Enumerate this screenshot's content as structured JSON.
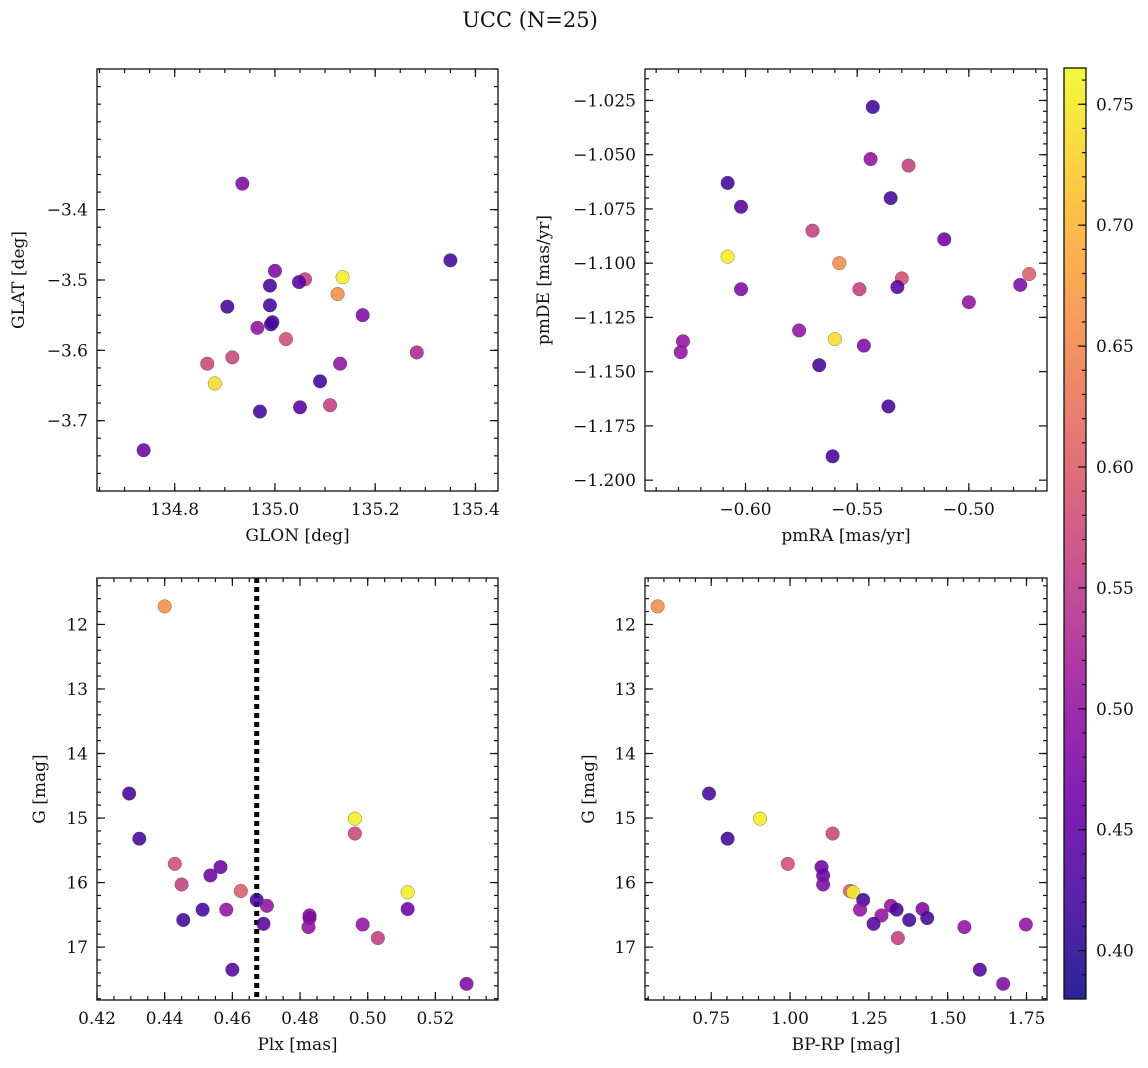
{
  "figure": {
    "title": "UCC (N=25)",
    "colorbar": {
      "vmin": 0.38,
      "vmax": 0.765,
      "ticks": [
        0.4,
        0.45,
        0.5,
        0.55,
        0.6,
        0.65,
        0.7,
        0.75
      ],
      "colormap": "plasma"
    }
  },
  "chart_data": [
    {
      "type": "scatter",
      "xlabel": "GLON [deg]",
      "ylabel": "GLAT [deg]",
      "xlim": [
        134.645,
        135.445
      ],
      "ylim": [
        -3.8,
        -3.2
      ],
      "y_inverted": false,
      "xticks": [
        134.8,
        135.0,
        135.2,
        135.4
      ],
      "yticks": [
        -3.4,
        -3.5,
        -3.6,
        -3.7
      ],
      "points": [
        {
          "x": 134.935,
          "y": -3.363,
          "c": 0.48
        },
        {
          "x": 135.35,
          "y": -3.472,
          "c": 0.42
        },
        {
          "x": 135.0,
          "y": -3.487,
          "c": 0.48
        },
        {
          "x": 135.135,
          "y": -3.496,
          "c": 0.755
        },
        {
          "x": 135.06,
          "y": -3.499,
          "c": 0.56
        },
        {
          "x": 135.048,
          "y": -3.503,
          "c": 0.44
        },
        {
          "x": 134.99,
          "y": -3.508,
          "c": 0.42
        },
        {
          "x": 135.125,
          "y": -3.52,
          "c": 0.66
        },
        {
          "x": 134.905,
          "y": -3.538,
          "c": 0.42
        },
        {
          "x": 134.99,
          "y": -3.536,
          "c": 0.42
        },
        {
          "x": 135.175,
          "y": -3.55,
          "c": 0.48
        },
        {
          "x": 134.995,
          "y": -3.56,
          "c": 0.44
        },
        {
          "x": 134.992,
          "y": -3.563,
          "c": 0.42
        },
        {
          "x": 134.965,
          "y": -3.568,
          "c": 0.5
        },
        {
          "x": 135.022,
          "y": -3.584,
          "c": 0.58
        },
        {
          "x": 135.283,
          "y": -3.603,
          "c": 0.53
        },
        {
          "x": 134.915,
          "y": -3.61,
          "c": 0.57
        },
        {
          "x": 134.865,
          "y": -3.619,
          "c": 0.57
        },
        {
          "x": 135.13,
          "y": -3.619,
          "c": 0.5
        },
        {
          "x": 135.09,
          "y": -3.644,
          "c": 0.42
        },
        {
          "x": 134.88,
          "y": -3.647,
          "c": 0.74
        },
        {
          "x": 135.11,
          "y": -3.678,
          "c": 0.56
        },
        {
          "x": 135.05,
          "y": -3.681,
          "c": 0.44
        },
        {
          "x": 134.97,
          "y": -3.687,
          "c": 0.42
        },
        {
          "x": 134.738,
          "y": -3.742,
          "c": 0.46
        }
      ]
    },
    {
      "type": "scatter",
      "xlabel": "pmRA [mas/yr]",
      "ylabel": "pmDE [mas/yr]",
      "xlim": [
        -0.645,
        -0.465
      ],
      "ylim": [
        -1.205,
        -1.0105
      ],
      "y_inverted": false,
      "xticks": [
        -0.6,
        -0.55,
        -0.5
      ],
      "yticks": [
        -1.025,
        -1.05,
        -1.075,
        -1.1,
        -1.125,
        -1.15,
        -1.175,
        -1.2
      ],
      "points": [
        {
          "x": -0.543,
          "y": -1.028,
          "c": 0.42
        },
        {
          "x": -0.544,
          "y": -1.052,
          "c": 0.5
        },
        {
          "x": -0.527,
          "y": -1.055,
          "c": 0.56
        },
        {
          "x": -0.608,
          "y": -1.063,
          "c": 0.42
        },
        {
          "x": -0.535,
          "y": -1.07,
          "c": 0.42
        },
        {
          "x": -0.602,
          "y": -1.074,
          "c": 0.44
        },
        {
          "x": -0.57,
          "y": -1.085,
          "c": 0.56
        },
        {
          "x": -0.511,
          "y": -1.089,
          "c": 0.46
        },
        {
          "x": -0.608,
          "y": -1.097,
          "c": 0.755
        },
        {
          "x": -0.558,
          "y": -1.1,
          "c": 0.66
        },
        {
          "x": -0.473,
          "y": -1.105,
          "c": 0.6
        },
        {
          "x": -0.53,
          "y": -1.107,
          "c": 0.58
        },
        {
          "x": -0.477,
          "y": -1.11,
          "c": 0.48
        },
        {
          "x": -0.532,
          "y": -1.111,
          "c": 0.44
        },
        {
          "x": -0.549,
          "y": -1.112,
          "c": 0.56
        },
        {
          "x": -0.602,
          "y": -1.112,
          "c": 0.48
        },
        {
          "x": -0.5,
          "y": -1.118,
          "c": 0.5
        },
        {
          "x": -0.576,
          "y": -1.131,
          "c": 0.5
        },
        {
          "x": -0.56,
          "y": -1.135,
          "c": 0.74
        },
        {
          "x": -0.628,
          "y": -1.136,
          "c": 0.5
        },
        {
          "x": -0.547,
          "y": -1.138,
          "c": 0.48
        },
        {
          "x": -0.629,
          "y": -1.141,
          "c": 0.5
        },
        {
          "x": -0.567,
          "y": -1.147,
          "c": 0.42
        },
        {
          "x": -0.536,
          "y": -1.166,
          "c": 0.42
        },
        {
          "x": -0.561,
          "y": -1.189,
          "c": 0.42
        }
      ]
    },
    {
      "type": "scatter",
      "xlabel": "Plx [mas]",
      "ylabel": "G [mag]",
      "xlim": [
        0.42,
        0.5385
      ],
      "ylim": [
        17.82,
        11.28
      ],
      "y_inverted": true,
      "xticks": [
        0.42,
        0.44,
        0.46,
        0.48,
        0.5,
        0.52
      ],
      "yticks": [
        12,
        13,
        14,
        15,
        16,
        17
      ],
      "vline": {
        "x": 0.4672,
        "style": "dotted"
      },
      "points": [
        {
          "x": 0.44,
          "y": 11.72,
          "c": 0.66
        },
        {
          "x": 0.4295,
          "y": 14.62,
          "c": 0.42
        },
        {
          "x": 0.4962,
          "y": 15.01,
          "c": 0.755
        },
        {
          "x": 0.4962,
          "y": 15.24,
          "c": 0.57
        },
        {
          "x": 0.4325,
          "y": 15.32,
          "c": 0.42
        },
        {
          "x": 0.443,
          "y": 15.71,
          "c": 0.58
        },
        {
          "x": 0.4565,
          "y": 15.76,
          "c": 0.46
        },
        {
          "x": 0.4535,
          "y": 15.89,
          "c": 0.46
        },
        {
          "x": 0.445,
          "y": 16.03,
          "c": 0.56
        },
        {
          "x": 0.4625,
          "y": 16.13,
          "c": 0.6
        },
        {
          "x": 0.5118,
          "y": 16.15,
          "c": 0.755
        },
        {
          "x": 0.4672,
          "y": 16.27,
          "c": 0.42
        },
        {
          "x": 0.4702,
          "y": 16.36,
          "c": 0.5
        },
        {
          "x": 0.5118,
          "y": 16.41,
          "c": 0.46
        },
        {
          "x": 0.4512,
          "y": 16.42,
          "c": 0.42
        },
        {
          "x": 0.4582,
          "y": 16.42,
          "c": 0.5
        },
        {
          "x": 0.4828,
          "y": 16.51,
          "c": 0.5
        },
        {
          "x": 0.4828,
          "y": 16.55,
          "c": 0.48
        },
        {
          "x": 0.4455,
          "y": 16.58,
          "c": 0.42
        },
        {
          "x": 0.4692,
          "y": 16.64,
          "c": 0.44
        },
        {
          "x": 0.4985,
          "y": 16.65,
          "c": 0.5
        },
        {
          "x": 0.4825,
          "y": 16.69,
          "c": 0.5
        },
        {
          "x": 0.503,
          "y": 16.86,
          "c": 0.56
        },
        {
          "x": 0.46,
          "y": 17.35,
          "c": 0.44
        },
        {
          "x": 0.5292,
          "y": 17.57,
          "c": 0.48
        }
      ]
    },
    {
      "type": "scatter",
      "xlabel": "BP-RP [mag]",
      "ylabel": "G [mag]",
      "xlim": [
        0.54,
        1.815
      ],
      "ylim": [
        17.82,
        11.28
      ],
      "y_inverted": true,
      "xticks": [
        0.75,
        1.0,
        1.25,
        1.5,
        1.75
      ],
      "yticks": [
        12,
        13,
        14,
        15,
        16,
        17
      ],
      "points": [
        {
          "x": 0.58,
          "y": 11.72,
          "c": 0.66
        },
        {
          "x": 0.743,
          "y": 14.62,
          "c": 0.42
        },
        {
          "x": 0.905,
          "y": 15.01,
          "c": 0.755
        },
        {
          "x": 1.135,
          "y": 15.24,
          "c": 0.57
        },
        {
          "x": 0.802,
          "y": 15.32,
          "c": 0.42
        },
        {
          "x": 0.993,
          "y": 15.71,
          "c": 0.58
        },
        {
          "x": 1.1,
          "y": 15.76,
          "c": 0.46
        },
        {
          "x": 1.105,
          "y": 15.89,
          "c": 0.46
        },
        {
          "x": 1.105,
          "y": 16.03,
          "c": 0.48
        },
        {
          "x": 1.19,
          "y": 16.13,
          "c": 0.6
        },
        {
          "x": 1.2,
          "y": 16.15,
          "c": 0.755
        },
        {
          "x": 1.232,
          "y": 16.27,
          "c": 0.42
        },
        {
          "x": 1.32,
          "y": 16.36,
          "c": 0.5
        },
        {
          "x": 1.42,
          "y": 16.41,
          "c": 0.48
        },
        {
          "x": 1.338,
          "y": 16.42,
          "c": 0.42
        },
        {
          "x": 1.222,
          "y": 16.42,
          "c": 0.5
        },
        {
          "x": 1.29,
          "y": 16.51,
          "c": 0.5
        },
        {
          "x": 1.435,
          "y": 16.55,
          "c": 0.42
        },
        {
          "x": 1.378,
          "y": 16.58,
          "c": 0.42
        },
        {
          "x": 1.265,
          "y": 16.64,
          "c": 0.44
        },
        {
          "x": 1.748,
          "y": 16.65,
          "c": 0.5
        },
        {
          "x": 1.553,
          "y": 16.69,
          "c": 0.5
        },
        {
          "x": 1.342,
          "y": 16.86,
          "c": 0.56
        },
        {
          "x": 1.602,
          "y": 17.35,
          "c": 0.44
        },
        {
          "x": 1.676,
          "y": 17.57,
          "c": 0.48
        }
      ]
    }
  ]
}
